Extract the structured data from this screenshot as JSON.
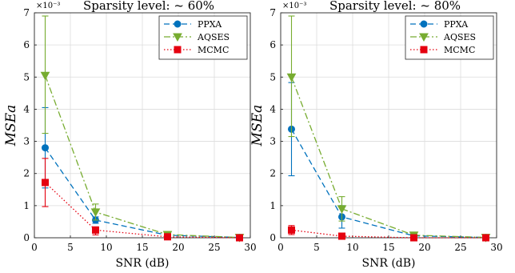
{
  "chart_data": [
    {
      "type": "line",
      "title": "Sparsity level: ~ 60%",
      "xlabel": "SNR (dB)",
      "ylabel": "MSEa",
      "y_scale_label": "×10⁻³",
      "xlim": [
        0,
        30
      ],
      "ylim": [
        0,
        7
      ],
      "xticks": [
        0,
        5,
        10,
        15,
        20,
        25,
        30
      ],
      "yticks": [
        0,
        1,
        2,
        3,
        4,
        5,
        6,
        7
      ],
      "grid": true,
      "legend_position": "top-right",
      "series": [
        {
          "name": "PPXA",
          "color": "#0072BD",
          "style": "dashed",
          "marker": "circle",
          "x": [
            1.5,
            8.5,
            18.5,
            28.5
          ],
          "y": [
            2.8,
            0.55,
            0.08,
            0.01
          ],
          "err_low": [
            1.25,
            0.1,
            0.02,
            0.0
          ],
          "err_high": [
            1.25,
            0.1,
            0.02,
            0.0
          ]
        },
        {
          "name": "AQSES",
          "color": "#77AC30",
          "style": "dashdot",
          "marker": "triangle-down",
          "x": [
            1.5,
            8.5,
            18.5,
            28.5
          ],
          "y": [
            5.05,
            0.8,
            0.1,
            0.01
          ],
          "err_low": [
            1.8,
            0.25,
            0.05,
            0.0
          ],
          "err_high": [
            1.85,
            0.25,
            0.05,
            0.0
          ]
        },
        {
          "name": "MCMC",
          "color": "#E5000F",
          "style": "dotted",
          "marker": "square",
          "x": [
            1.5,
            8.5,
            18.5,
            28.5
          ],
          "y": [
            1.72,
            0.24,
            0.03,
            0.0
          ],
          "err_low": [
            0.75,
            0.15,
            0.02,
            0.0
          ],
          "err_high": [
            0.75,
            0.1,
            0.02,
            0.0
          ]
        }
      ]
    },
    {
      "type": "line",
      "title": "Sparsity level: ~ 80%",
      "xlabel": "SNR (dB)",
      "ylabel": "MSEa",
      "y_scale_label": "×10⁻³",
      "xlim": [
        0,
        30
      ],
      "ylim": [
        0,
        7
      ],
      "xticks": [
        0,
        5,
        10,
        15,
        20,
        25,
        30
      ],
      "yticks": [
        0,
        1,
        2,
        3,
        4,
        5,
        6,
        7
      ],
      "grid": true,
      "legend_position": "top-right",
      "series": [
        {
          "name": "PPXA",
          "color": "#0072BD",
          "style": "dashed",
          "marker": "circle",
          "x": [
            1.5,
            8.5,
            18.5,
            28.5
          ],
          "y": [
            3.38,
            0.65,
            0.06,
            0.01
          ],
          "err_low": [
            1.45,
            0.35,
            0.02,
            0.0
          ],
          "err_high": [
            1.45,
            0.35,
            0.02,
            0.0
          ]
        },
        {
          "name": "AQSES",
          "color": "#77AC30",
          "style": "dashdot",
          "marker": "triangle-down",
          "x": [
            1.5,
            8.5,
            18.5,
            28.5
          ],
          "y": [
            5.0,
            0.9,
            0.08,
            0.01
          ],
          "err_low": [
            1.85,
            0.38,
            0.03,
            0.0
          ],
          "err_high": [
            1.9,
            0.38,
            0.03,
            0.0
          ]
        },
        {
          "name": "MCMC",
          "color": "#E5000F",
          "style": "dotted",
          "marker": "square",
          "x": [
            1.5,
            8.5,
            18.5,
            28.5
          ],
          "y": [
            0.24,
            0.05,
            0.0,
            0.0
          ],
          "err_low": [
            0.14,
            0.02,
            0.0,
            0.0
          ],
          "err_high": [
            0.14,
            0.02,
            0.0,
            0.0
          ]
        }
      ]
    }
  ]
}
